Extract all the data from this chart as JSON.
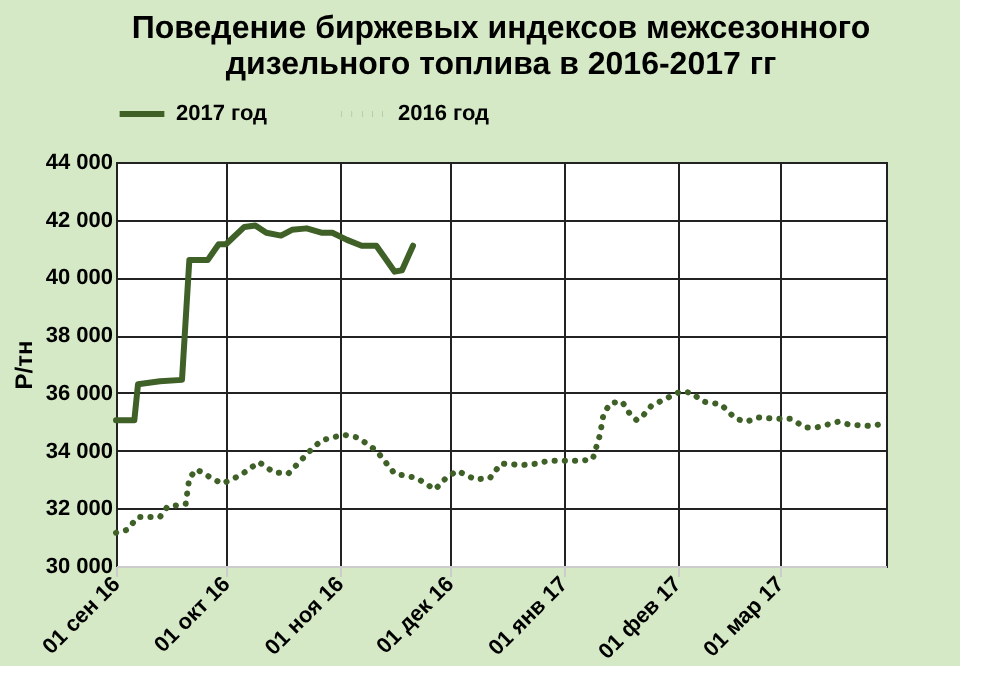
{
  "chart_data": {
    "type": "line",
    "title": "Поведение биржевых индексов межсезонного\nдизельного топлива в 2016-2017 гг",
    "ylabel": "Р/тн",
    "series": [
      {
        "name": "2017 год",
        "color": "#3f6127",
        "line_style": "solid",
        "x": [
          "2016-09-01",
          "2016-09-06",
          "2016-09-07",
          "2016-09-13",
          "2016-09-19",
          "2016-09-21",
          "2016-09-26",
          "2016-09-29",
          "2016-10-01",
          "2016-10-06",
          "2016-10-09",
          "2016-10-12",
          "2016-10-16",
          "2016-10-19",
          "2016-10-23",
          "2016-10-27",
          "2016-10-30",
          "2016-11-03",
          "2016-11-07",
          "2016-11-11",
          "2016-11-16",
          "2016-11-18",
          "2016-11-21"
        ],
        "values": [
          35050,
          35050,
          36300,
          36400,
          36450,
          40600,
          40600,
          41150,
          41150,
          41750,
          41800,
          41550,
          41450,
          41650,
          41700,
          41550,
          41550,
          41300,
          41100,
          41100,
          40200,
          40250,
          41100
        ]
      },
      {
        "name": "2016 год",
        "color": "#3f6127",
        "line_style": "dotted",
        "x": [
          "2016-09-01",
          "2016-09-04",
          "2016-09-07",
          "2016-09-13",
          "2016-09-15",
          "2016-09-20",
          "2016-09-21",
          "2016-09-23",
          "2016-09-27",
          "2016-09-30",
          "2016-10-05",
          "2016-10-10",
          "2016-10-14",
          "2016-10-18",
          "2016-10-24",
          "2016-10-27",
          "2016-11-02",
          "2016-11-06",
          "2016-11-11",
          "2016-11-16",
          "2016-11-22",
          "2016-11-27",
          "2016-11-30",
          "2016-12-03",
          "2016-12-08",
          "2016-12-12",
          "2016-12-15",
          "2016-12-21",
          "2016-12-25",
          "2016-12-28",
          "2017-01-06",
          "2017-01-09",
          "2017-01-11",
          "2017-01-12",
          "2017-01-14",
          "2017-01-17",
          "2017-01-19",
          "2017-01-21",
          "2017-01-23",
          "2017-01-25",
          "2017-01-29",
          "2017-02-02",
          "2017-02-05",
          "2017-02-08",
          "2017-02-13",
          "2017-02-17",
          "2017-02-20",
          "2017-02-23",
          "2017-02-28",
          "2017-03-04",
          "2017-03-08",
          "2017-03-11",
          "2017-03-17",
          "2017-03-20",
          "2017-03-26",
          "2017-03-30"
        ],
        "values": [
          31150,
          31250,
          31700,
          31700,
          32050,
          32150,
          33050,
          33350,
          33050,
          32850,
          33150,
          33600,
          33250,
          33200,
          34000,
          34350,
          34550,
          34450,
          34000,
          33200,
          33050,
          32650,
          33050,
          33300,
          33000,
          33050,
          33550,
          33500,
          33550,
          33650,
          33650,
          33700,
          34550,
          35300,
          35650,
          35700,
          35300,
          35050,
          35250,
          35550,
          35800,
          36050,
          36000,
          35700,
          35600,
          35100,
          35000,
          35150,
          35100,
          35100,
          34800,
          34800,
          35000,
          34900,
          34850,
          34950
        ]
      }
    ],
    "xlim": [
      "2016-09-01",
      "2017-03-30"
    ],
    "xticks": [
      {
        "value": "2016-09-01",
        "label": "01 сен 16"
      },
      {
        "value": "2016-10-01",
        "label": "01 окт 16"
      },
      {
        "value": "2016-11-01",
        "label": "01 ноя 16"
      },
      {
        "value": "2016-12-01",
        "label": "01 дек 16"
      },
      {
        "value": "2017-01-01",
        "label": "01 янв 17"
      },
      {
        "value": "2017-02-01",
        "label": "01 фев 17"
      },
      {
        "value": "2017-03-01",
        "label": "01 мар 17"
      }
    ],
    "ylim": [
      30000,
      44000
    ],
    "yticks": [
      {
        "value": 30000,
        "label": "30 000"
      },
      {
        "value": 32000,
        "label": "32 000"
      },
      {
        "value": 34000,
        "label": "34 000"
      },
      {
        "value": 36000,
        "label": "36 000"
      },
      {
        "value": 38000,
        "label": "38 000"
      },
      {
        "value": 40000,
        "label": "40 000"
      },
      {
        "value": 42000,
        "label": "42 000"
      },
      {
        "value": 44000,
        "label": "44 000"
      }
    ],
    "grid": true,
    "legend": "top",
    "marker": "none"
  }
}
